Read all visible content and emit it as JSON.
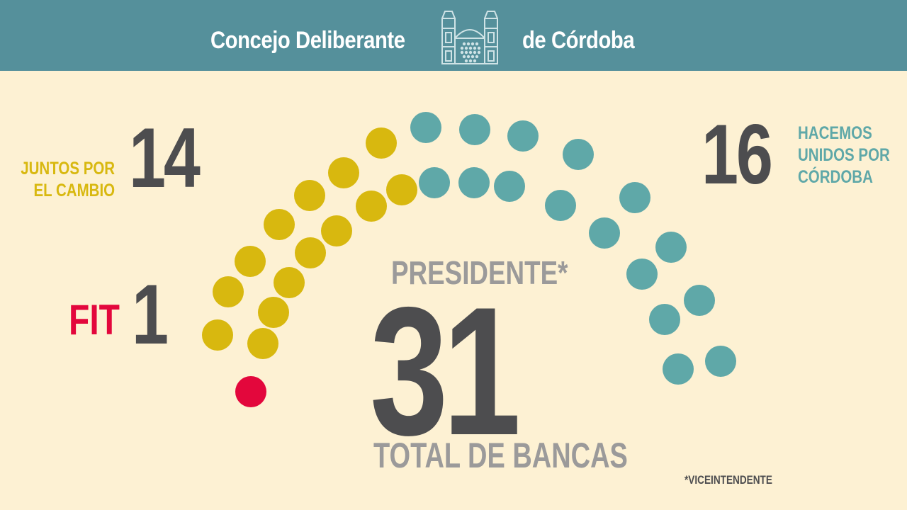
{
  "header": {
    "title_left": "Concejo Deliberante",
    "title_right": "de Córdoba",
    "logo_icon": "legislative-building-icon"
  },
  "chart_data": {
    "type": "parliament",
    "title": "",
    "total_label": "TOTAL DE BANCAS",
    "total": "31",
    "presidente_label": "PRESIDENTE*",
    "footnote": "*VICEINTENDENTE",
    "parties": [
      {
        "name": "FIT",
        "label_lines": [
          "FIT"
        ],
        "seats": 1,
        "display": "1",
        "color": "#e3073c"
      },
      {
        "name": "JUNTOS POR EL CAMBIO",
        "label_lines": [
          "JUNTOS POR",
          "EL CAMBIO"
        ],
        "seats": 14,
        "display": "14",
        "color": "#d8b80f"
      },
      {
        "name": "HACEMOS UNIDOS POR CÓRDOBA",
        "label_lines": [
          "HACEMOS",
          "UNIDOS POR",
          "CÓRDOBA"
        ],
        "seats": 16,
        "display": "16",
        "color": "#5fa8a8"
      }
    ]
  }
}
